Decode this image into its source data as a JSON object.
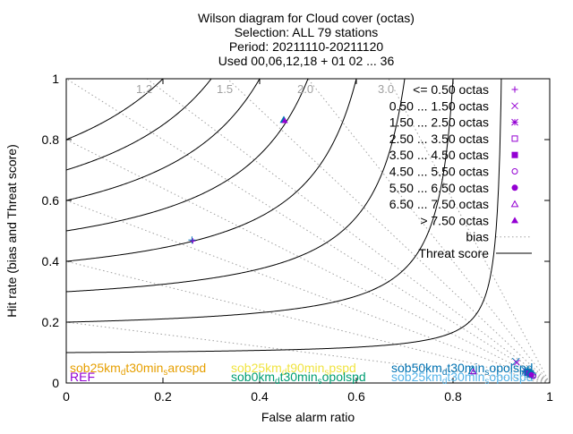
{
  "chart_data": {
    "type": "scatter",
    "title_lines": [
      "Wilson diagram  for Cloud cover (octas)",
      "Selection: ALL     79 stations",
      "Period: 20211110-20211120",
      "Used 00,06,12,18 + 01 02 ... 36"
    ],
    "xlabel": "False alarm ratio",
    "ylabel": "Hit rate (bias and Threat score)",
    "xlim": [
      0,
      1
    ],
    "ylim": [
      0,
      1
    ],
    "xticks": [
      "0",
      "0.2",
      "0.4",
      "0.6",
      "0.8",
      "1"
    ],
    "yticks": [
      "0",
      "0.2",
      "0.4",
      "0.6",
      "0.8",
      "1"
    ],
    "bias_values": [
      1.2,
      1.5,
      2.0,
      3.0
    ],
    "bias_labels": [
      "1.2",
      "1.5",
      "2.0",
      "3.0"
    ],
    "threat_scores": [
      0.1,
      0.2,
      0.3,
      0.4,
      0.5,
      0.6,
      0.7,
      0.8
    ],
    "legend": [
      {
        "label": "<= 0.50 octas",
        "marker": "plus"
      },
      {
        "label": "0.50 ... 1.50 octas",
        "marker": "cross"
      },
      {
        "label": "1.50 ... 2.50 octas",
        "marker": "star"
      },
      {
        "label": "2.50 ... 3.50 octas",
        "marker": "square-open"
      },
      {
        "label": "3.50 ... 4.50 octas",
        "marker": "square-filled"
      },
      {
        "label": "4.50 ... 5.50 octas",
        "marker": "circle-open"
      },
      {
        "label": "5.50 ... 6.50 octas",
        "marker": "circle-filled"
      },
      {
        "label": "6.50 ... 7.50 octas",
        "marker": "triangle-open"
      },
      {
        "label": "> 7.50 octas",
        "marker": "triangle-filled"
      },
      {
        "label": "bias",
        "marker": "dotted-line"
      },
      {
        "label": "Threat score",
        "marker": "solid-line"
      }
    ],
    "experiments": [
      {
        "name": "REF",
        "color": "#9400d3"
      },
      {
        "name": "sob25km_d t30min_s arospd",
        "color": "#e69f00"
      },
      {
        "name": "sob25km_d t90min_s pspd",
        "color": "#f0e442"
      },
      {
        "name": "sob0km_d t30min_s opolspd",
        "color": "#009e73"
      },
      {
        "name": "sob50km_d t30min_s opolspd",
        "color": "#0072b2"
      },
      {
        "name": "sob25km_d t30min_s opolspd",
        "color": "#56b4e9"
      }
    ],
    "exp_label_segments": [
      [
        {
          "t": "REF",
          "sub": false
        }
      ],
      [
        {
          "t": "sob25km",
          "sub": false
        },
        {
          "t": "d",
          "sub": true
        },
        {
          "t": "t30min",
          "sub": false
        },
        {
          "t": "s",
          "sub": true
        },
        {
          "t": "arospd",
          "sub": false
        }
      ],
      [
        {
          "t": "sob25km",
          "sub": false
        },
        {
          "t": "d",
          "sub": true
        },
        {
          "t": "t90min",
          "sub": false
        },
        {
          "t": "s",
          "sub": true
        },
        {
          "t": "pspd",
          "sub": false
        }
      ],
      [
        {
          "t": "sob0km",
          "sub": false
        },
        {
          "t": "d",
          "sub": true
        },
        {
          "t": "t30min",
          "sub": false
        },
        {
          "t": "s",
          "sub": true
        },
        {
          "t": "opolspd",
          "sub": false
        }
      ],
      [
        {
          "t": "sob50km",
          "sub": false
        },
        {
          "t": "d",
          "sub": true
        },
        {
          "t": "t30min",
          "sub": false
        },
        {
          "t": "s",
          "sub": true
        },
        {
          "t": "opolspd",
          "sub": false
        }
      ],
      [
        {
          "t": "sob25km",
          "sub": false
        },
        {
          "t": "d",
          "sub": true
        },
        {
          "t": "t30min",
          "sub": false
        },
        {
          "t": "s",
          "sub": true
        },
        {
          "t": "opolspd",
          "sub": false
        }
      ]
    ],
    "points": [
      {
        "category": "<= 0.50 octas",
        "far": 0.26,
        "hr": 0.47,
        "marker": "plus"
      },
      {
        "category": "0.50 ... 1.50 octas",
        "far": 0.93,
        "hr": 0.07,
        "marker": "cross"
      },
      {
        "category": "1.50 ... 2.50 octas",
        "far": 0.95,
        "hr": 0.04,
        "marker": "star"
      },
      {
        "category": "2.50 ... 3.50 octas",
        "far": 0.96,
        "hr": 0.03,
        "marker": "square-open"
      },
      {
        "category": "3.50 ... 4.50 octas",
        "far": 0.955,
        "hr": 0.035,
        "marker": "square-filled"
      },
      {
        "category": "4.50 ... 5.50 octas",
        "far": 0.965,
        "hr": 0.025,
        "marker": "circle-open"
      },
      {
        "category": "5.50 ... 6.50 octas",
        "far": 0.96,
        "hr": 0.03,
        "marker": "circle-filled"
      },
      {
        "category": "6.50 ... 7.50 octas",
        "far": 0.84,
        "hr": 0.04,
        "marker": "triangle-open"
      },
      {
        "category": "> 7.50 octas",
        "far": 0.45,
        "hr": 0.865,
        "marker": "triangle-filled"
      }
    ],
    "grid": false,
    "legend_position": "top-right"
  },
  "colors": {
    "markers": "#9400d3",
    "point_overlay": "#0072b2",
    "threat_lines": "#000000",
    "bias_lines": "#a0a0a0"
  }
}
